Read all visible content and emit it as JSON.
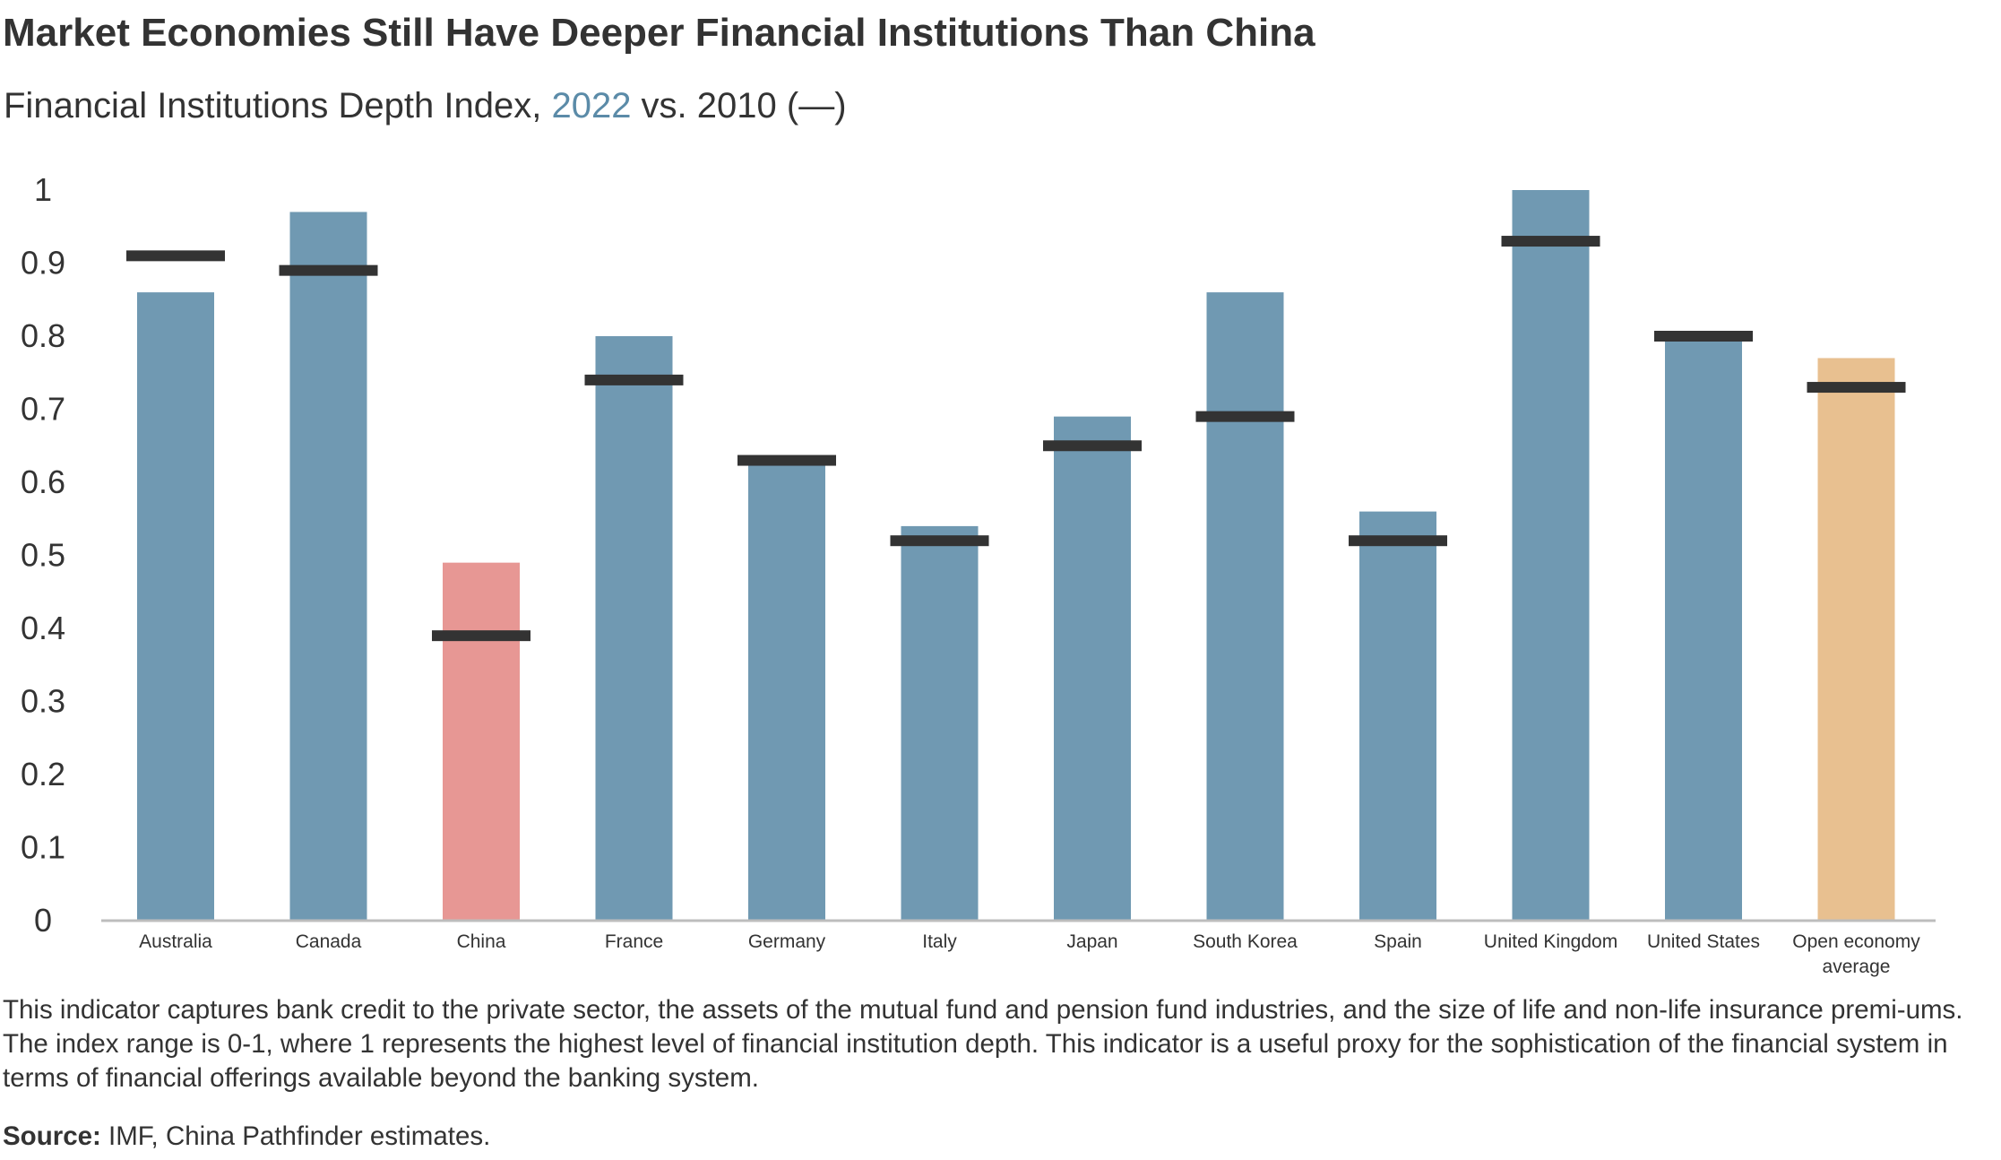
{
  "title": "Market Economies Still Have Deeper Financial Institutions Than China",
  "subtitle": {
    "prefix": "Financial Institutions Depth Index, ",
    "highlight": "2022",
    "suffix": " vs. 2010 (—)"
  },
  "chart_data": {
    "type": "bar",
    "categories": [
      "Australia",
      "Canada",
      "China",
      "France",
      "Germany",
      "Italy",
      "Japan",
      "South Korea",
      "Spain",
      "United Kingdom",
      "United States",
      "Open economy average"
    ],
    "series": [
      {
        "name": "2022",
        "values": [
          0.86,
          0.97,
          0.49,
          0.8,
          0.63,
          0.54,
          0.69,
          0.86,
          0.56,
          1.0,
          0.8,
          0.77
        ]
      },
      {
        "name": "2010",
        "values": [
          0.91,
          0.89,
          0.39,
          0.74,
          0.63,
          0.52,
          0.65,
          0.69,
          0.52,
          0.93,
          0.8,
          0.73
        ]
      }
    ],
    "bar_colors": [
      "#7099b2",
      "#7099b2",
      "#e79794",
      "#7099b2",
      "#7099b2",
      "#7099b2",
      "#7099b2",
      "#7099b2",
      "#7099b2",
      "#7099b2",
      "#7099b2",
      "#e8c090"
    ],
    "marker_color": "#333333",
    "yticks": [
      "0",
      "0.1",
      "0.2",
      "0.3",
      "0.4",
      "0.5",
      "0.6",
      "0.7",
      "0.8",
      "0.9",
      "1"
    ],
    "ylim": [
      0,
      1
    ],
    "grid": false
  },
  "note": "This indicator captures bank credit to the private sector, the assets of the mutual fund and pension fund industries, and the size of life and non-life insurance premi-ums. The index range is 0-1, where 1 represents the highest level of financial institution depth. This indicator is a useful proxy for the sophistication of the financial system in terms of financial offerings available beyond the banking system.",
  "source": {
    "label": "Source:",
    "text": " IMF, China Pathfinder estimates."
  }
}
